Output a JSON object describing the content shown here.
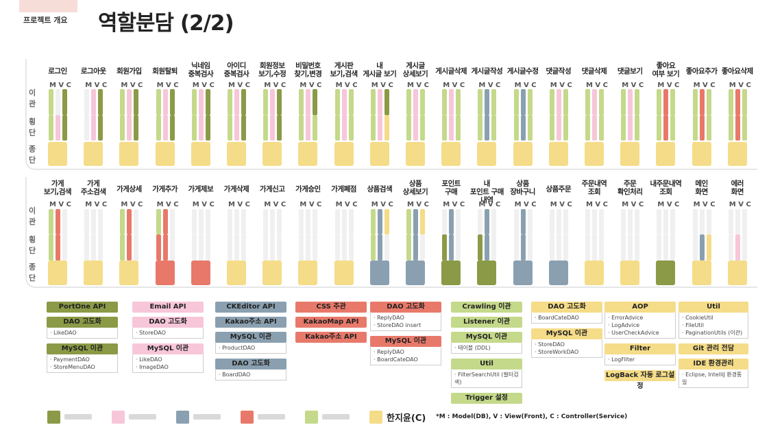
{
  "header": {
    "section": "프로젝트 개요",
    "title": "역할분담 (2/2)"
  },
  "row_labels": {
    "i": "이관",
    "h": "횡단",
    "j": "종단"
  },
  "mvc": "M V C",
  "colors": {
    "olive": "#8b9a46",
    "pink": "#f7c6d9",
    "slate": "#8aa0b0",
    "red": "#e8796a",
    "lime": "#c4d98a",
    "yellow": "#f5dc88",
    "grey": "#f0f0f0"
  },
  "features_top": [
    {
      "label": "로그인",
      "m": [
        "lime",
        "lime"
      ],
      "v": [
        "grey",
        "pink"
      ],
      "c": [
        "olive",
        "olive"
      ],
      "j": "yellow"
    },
    {
      "label": "로그아웃",
      "m": [
        "grey",
        "grey"
      ],
      "v": [
        "pink",
        "pink"
      ],
      "c": [
        "olive",
        "olive"
      ],
      "j": "yellow"
    },
    {
      "label": "회원가입",
      "m": [
        "lime",
        "lime"
      ],
      "v": [
        "pink",
        "pink"
      ],
      "c": [
        "olive",
        "olive"
      ],
      "j": "yellow"
    },
    {
      "label": "회원탈퇴",
      "m": [
        "lime",
        "lime"
      ],
      "v": [
        "pink",
        "pink"
      ],
      "c": [
        "olive",
        "olive"
      ],
      "j": "yellow"
    },
    {
      "label": "닉네임 중복검사",
      "m": [
        "lime",
        "lime"
      ],
      "v": [
        "pink",
        "pink"
      ],
      "c": [
        "olive",
        "olive"
      ],
      "j": "yellow"
    },
    {
      "label": "아이디 중복검사",
      "m": [
        "lime",
        "lime"
      ],
      "v": [
        "pink",
        "pink"
      ],
      "c": [
        "olive",
        "olive"
      ],
      "j": "yellow"
    },
    {
      "label": "회원정보 보기,수정",
      "m": [
        "lime",
        "lime"
      ],
      "v": [
        "pink",
        "pink"
      ],
      "c": [
        "olive",
        "olive"
      ],
      "j": "yellow"
    },
    {
      "label": "비밀번호 찾기,변경",
      "m": [
        "lime",
        "lime"
      ],
      "v": [
        "pink",
        "pink"
      ],
      "c": [
        "olive",
        "lime"
      ],
      "j": "yellow"
    },
    {
      "label": "게시판 보기,검색",
      "m": [
        "lime",
        "lime"
      ],
      "v": [
        "pink",
        "pink"
      ],
      "c": [
        "lime",
        "lime"
      ],
      "j": "yellow"
    },
    {
      "label": "내 게시글 보기",
      "m": [
        "lime",
        "lime"
      ],
      "v": [
        "pink",
        "pink"
      ],
      "c": [
        "olive",
        "yellow"
      ],
      "j": "yellow"
    },
    {
      "label": "게시글 상세보기",
      "m": [
        "lime",
        "lime"
      ],
      "v": [
        "pink",
        "pink"
      ],
      "c": [
        "lime",
        "lime"
      ],
      "j": "yellow"
    },
    {
      "label": "게시글삭제",
      "m": [
        "lime",
        "lime"
      ],
      "v": [
        "pink",
        "pink"
      ],
      "c": [
        "lime",
        "lime"
      ],
      "j": "yellow"
    },
    {
      "label": "게시글작성",
      "m": [
        "lime",
        "lime"
      ],
      "v": [
        "slate",
        "slate"
      ],
      "c": [
        "lime",
        "lime"
      ],
      "j": "yellow"
    },
    {
      "label": "게시글수정",
      "m": [
        "lime",
        "lime"
      ],
      "v": [
        "slate",
        "slate"
      ],
      "c": [
        "lime",
        "lime"
      ],
      "j": "yellow"
    },
    {
      "label": "댓글작성",
      "m": [
        "lime",
        "lime"
      ],
      "v": [
        "pink",
        "pink"
      ],
      "c": [
        "lime",
        "lime"
      ],
      "j": "yellow"
    },
    {
      "label": "댓글삭제",
      "m": [
        "lime",
        "lime"
      ],
      "v": [
        "pink",
        "pink"
      ],
      "c": [
        "lime",
        "lime"
      ],
      "j": "yellow"
    },
    {
      "label": "댓글보기",
      "m": [
        "lime",
        "lime"
      ],
      "v": [
        "pink",
        "pink"
      ],
      "c": [
        "lime",
        "lime"
      ],
      "j": "yellow"
    },
    {
      "label": "좋아요 여부 보기",
      "m": [
        "lime",
        "lime"
      ],
      "v": [
        "red",
        "red"
      ],
      "c": [
        "lime",
        "lime"
      ],
      "j": "yellow"
    },
    {
      "label": "좋아요추가",
      "m": [
        "lime",
        "lime"
      ],
      "v": [
        "red",
        "red"
      ],
      "c": [
        "lime",
        "lime"
      ],
      "j": "yellow"
    },
    {
      "label": "좋아요삭제",
      "m": [
        "lime",
        "lime"
      ],
      "v": [
        "red",
        "red"
      ],
      "c": [
        "lime",
        "lime"
      ],
      "j": "yellow"
    }
  ],
  "features_bottom": [
    {
      "label": "가게 보기,검색",
      "m": [
        "lime",
        "lime"
      ],
      "v": [
        "red",
        "red"
      ],
      "c": [
        "grey",
        "grey"
      ],
      "j": "yellow"
    },
    {
      "label": "가게 주소검색",
      "m": [
        "grey",
        "grey"
      ],
      "v": [
        "grey",
        "grey"
      ],
      "c": [
        "grey",
        "grey"
      ],
      "j": "yellow"
    },
    {
      "label": "가게상세",
      "m": [
        "lime",
        "lime"
      ],
      "v": [
        "red",
        "red"
      ],
      "c": [
        "grey",
        "grey"
      ],
      "j": "yellow"
    },
    {
      "label": "가게추가",
      "m": [
        "lime",
        "red"
      ],
      "v": [
        "red",
        "red"
      ],
      "c": [
        "grey",
        "grey"
      ],
      "j": "red"
    },
    {
      "label": "가게제보",
      "m": [
        "grey",
        "grey"
      ],
      "v": [
        "grey",
        "grey"
      ],
      "c": [
        "grey",
        "grey"
      ],
      "j": "red"
    },
    {
      "label": "가게삭제",
      "m": [
        "grey",
        "grey"
      ],
      "v": [
        "grey",
        "grey"
      ],
      "c": [
        "grey",
        "grey"
      ],
      "j": "yellow"
    },
    {
      "label": "가게신고",
      "m": [
        "grey",
        "grey"
      ],
      "v": [
        "grey",
        "grey"
      ],
      "c": [
        "grey",
        "grey"
      ],
      "j": "yellow"
    },
    {
      "label": "가게승인",
      "m": [
        "grey",
        "grey"
      ],
      "v": [
        "grey",
        "grey"
      ],
      "c": [
        "grey",
        "grey"
      ],
      "j": "yellow"
    },
    {
      "label": "가게폐점",
      "m": [
        "grey",
        "grey"
      ],
      "v": [
        "grey",
        "grey"
      ],
      "c": [
        "grey",
        "grey"
      ],
      "j": "yellow"
    },
    {
      "label": "상품검색",
      "m": [
        "lime",
        "lime"
      ],
      "v": [
        "slate",
        "slate"
      ],
      "c": [
        "yellow",
        "grey"
      ],
      "j": "slate"
    },
    {
      "label": "상품 상세보기",
      "m": [
        "lime",
        "lime"
      ],
      "v": [
        "slate",
        "slate"
      ],
      "c": [
        "yellow",
        "grey"
      ],
      "j": "slate"
    },
    {
      "label": "포인트 구매",
      "m": [
        "grey",
        "olive"
      ],
      "v": [
        "slate",
        "slate"
      ],
      "c": [
        "grey",
        "grey"
      ],
      "j": "olive"
    },
    {
      "label": "내 포인트 구매내역",
      "m": [
        "grey",
        "olive"
      ],
      "v": [
        "slate",
        "slate"
      ],
      "c": [
        "grey",
        "grey"
      ],
      "j": "olive"
    },
    {
      "label": "상품 장바구니",
      "m": [
        "grey",
        "grey"
      ],
      "v": [
        "slate",
        "slate"
      ],
      "c": [
        "grey",
        "grey"
      ],
      "j": "slate"
    },
    {
      "label": "상품주문",
      "m": [
        "grey",
        "grey"
      ],
      "v": [
        "grey",
        "grey"
      ],
      "c": [
        "grey",
        "grey"
      ],
      "j": "slate"
    },
    {
      "label": "주문내역 조회",
      "m": [
        "grey",
        "grey"
      ],
      "v": [
        "grey",
        "grey"
      ],
      "c": [
        "grey",
        "grey"
      ],
      "j": "yellow"
    },
    {
      "label": "주문 확인처리",
      "m": [
        "grey",
        "grey"
      ],
      "v": [
        "grey",
        "grey"
      ],
      "c": [
        "grey",
        "grey"
      ],
      "j": "yellow"
    },
    {
      "label": "내주문내역 조회",
      "m": [
        "grey",
        "grey"
      ],
      "v": [
        "grey",
        "grey"
      ],
      "c": [
        "grey",
        "grey"
      ],
      "j": "olive"
    },
    {
      "label": "메인 화면",
      "m": [
        "grey",
        "grey"
      ],
      "v": [
        "grey",
        "slate"
      ],
      "c": [
        "grey",
        "yellow"
      ],
      "j": "yellow"
    },
    {
      "label": "에러 화면",
      "m": [
        "grey",
        "grey"
      ],
      "v": [
        "grey",
        "pink"
      ],
      "c": [
        "grey",
        "grey"
      ],
      "j": "yellow"
    }
  ],
  "categories": [
    {
      "col": 0,
      "color": "olive",
      "items": [
        {
          "title": "PortOne API",
          "lines": []
        },
        {
          "title": "DAO 고도화",
          "lines": [
            "· LikeDAO"
          ]
        },
        {
          "title": "MySQL 이관",
          "lines": [
            "· PaymentDAO",
            "· StoreMenuDAO"
          ]
        }
      ]
    },
    {
      "col": 1,
      "color": "pink",
      "items": [
        {
          "title": "Email API",
          "lines": []
        },
        {
          "title": "DAO 고도화",
          "lines": [
            "· StoreDAO"
          ]
        },
        {
          "title": "MySQL 이관",
          "lines": [
            "· LikeDAO",
            "· ImageDAO"
          ]
        }
      ]
    },
    {
      "col": 2,
      "color": "slate",
      "items": [
        {
          "title": "CKEditor API",
          "lines": []
        },
        {
          "title": "Kakao주소 API",
          "lines": []
        },
        {
          "title": "MySQL 이관",
          "lines": [
            "· ProductDAO"
          ]
        },
        {
          "title": "DAO 고도화",
          "lines": [
            "· BoardDAO"
          ]
        }
      ]
    },
    {
      "col": 3,
      "color": "red",
      "items": [
        {
          "title": "CSS 주관",
          "lines": []
        },
        {
          "title": "KakaoMap API",
          "lines": []
        },
        {
          "title": "Kakao주소 API",
          "lines": []
        }
      ]
    },
    {
      "col": 4,
      "color": "red",
      "items": [
        {
          "title": "DAO 고도화",
          "lines": [
            "· ReplyDAO",
            "· StoreDAO insert"
          ]
        },
        {
          "title": "MySQL 이관",
          "lines": [
            "· ReplyDAO",
            "· BoardCateDAO"
          ]
        }
      ]
    },
    {
      "col": 5,
      "color": "lime",
      "items": [
        {
          "title": "Crawling 이관",
          "lines": []
        },
        {
          "title": "Listener 이관",
          "lines": []
        },
        {
          "title": "MySQL 이관",
          "lines": [
            "· 테이블 (DDL)"
          ]
        },
        {
          "title": "Util",
          "lines": [
            "· FilterSearchUtil (필터검색)"
          ]
        },
        {
          "title": "Trigger 설정",
          "lines": []
        }
      ]
    },
    {
      "col": 6,
      "color": "yellow",
      "items": [
        {
          "title": "DAO 고도화",
          "lines": [
            "· BoardCateDAO"
          ]
        },
        {
          "title": "MySQL 이관",
          "lines": [
            "· StoreDAO",
            "· StoreWorkDAO"
          ]
        }
      ]
    },
    {
      "col": 7,
      "color": "yellow",
      "items": [
        {
          "title": "AOP",
          "lines": [
            "· ErrorAdvice",
            "· LogAdvice",
            "· UserCheckAdvice"
          ]
        },
        {
          "title": "Filter",
          "lines": [
            "· LogFilter"
          ]
        },
        {
          "title": "LogBack 자동 로그설정",
          "lines": []
        }
      ]
    },
    {
      "col": 8,
      "color": "yellow",
      "items": [
        {
          "title": "Util",
          "lines": [
            "· CookieUtil",
            "· FileUtil",
            "· PaginationUtils (이관)"
          ]
        },
        {
          "title": "Git 관리 전담",
          "lines": []
        },
        {
          "title": "IDE 환경관리",
          "lines": [
            "· Eclipse, IntelliJ 환경통일"
          ]
        }
      ]
    }
  ],
  "legend": [
    {
      "color": "olive",
      "name": ""
    },
    {
      "color": "pink",
      "name": ""
    },
    {
      "color": "slate",
      "name": ""
    },
    {
      "color": "red",
      "name": ""
    },
    {
      "color": "lime",
      "name": ""
    },
    {
      "color": "yellow",
      "name": "한지윤(C)"
    }
  ],
  "note": "*M : Model(DB), V : View(Front), C : Controller(Service)"
}
